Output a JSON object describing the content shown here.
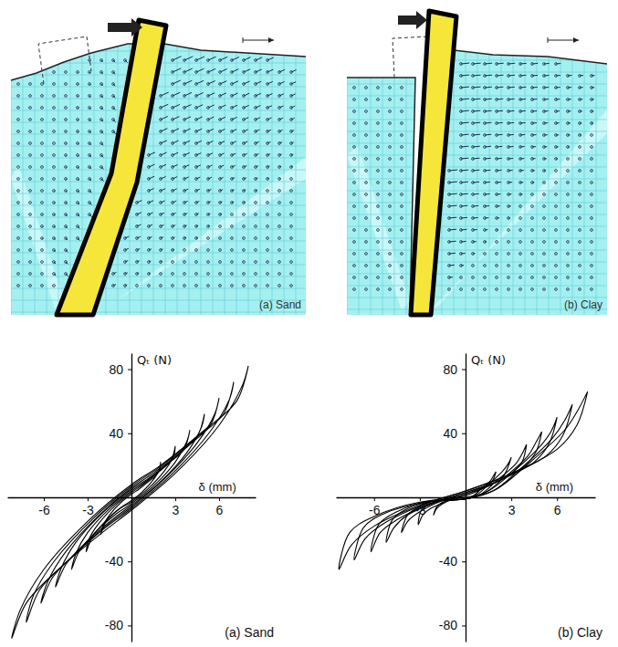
{
  "diagrams": [
    {
      "label": "(a) Sand"
    },
    {
      "label": "(b) Clay"
    }
  ],
  "chart_data": [
    {
      "type": "line",
      "title": "(a) Sand",
      "x_label": "δ (mm)",
      "y_label": "Qₜ (N)",
      "xlim": [
        -8.5,
        8.5
      ],
      "ylim": [
        -90,
        90
      ],
      "xticks": [
        -6,
        -3,
        3,
        6
      ],
      "yticks": [
        80,
        40,
        -40,
        -80
      ],
      "series": [
        {
          "color": "#000000",
          "x": [
            8,
            7.2,
            5,
            2,
            0,
            -3,
            -6,
            -7.6,
            -8.2,
            -7.2,
            -5,
            -2,
            0,
            3,
            6,
            7.6,
            8
          ],
          "values": [
            82,
            60,
            42,
            20,
            8,
            -15,
            -45,
            -70,
            -88,
            -66,
            -45,
            -22,
            -8,
            15,
            45,
            70,
            82
          ]
        },
        {
          "color": "#000000",
          "x": [
            7,
            6.3,
            4.4,
            1.8,
            0,
            -2.6,
            -5.3,
            -6.7,
            -7.2,
            -6.3,
            -4.4,
            -1.8,
            0,
            2.6,
            5.3,
            6.7,
            7
          ],
          "values": [
            72,
            52,
            37,
            18,
            7,
            -13,
            -40,
            -61,
            -78,
            -58,
            -40,
            -19,
            -7,
            13,
            40,
            61,
            72
          ]
        },
        {
          "color": "#000000",
          "x": [
            6,
            5.4,
            3.7,
            1.5,
            0,
            -2.2,
            -4.5,
            -5.7,
            -6.2,
            -5.4,
            -3.7,
            -1.5,
            0,
            2.2,
            4.5,
            5.7,
            6
          ],
          "values": [
            62,
            45,
            31,
            15,
            6,
            -11,
            -34,
            -52,
            -66,
            -50,
            -34,
            -16,
            -6,
            11,
            34,
            52,
            62
          ]
        },
        {
          "color": "#000000",
          "x": [
            5,
            4.5,
            3.1,
            1.2,
            0,
            -1.9,
            -3.8,
            -4.8,
            -5.2,
            -4.5,
            -3.1,
            -1.2,
            0,
            1.9,
            3.8,
            4.8,
            5
          ],
          "values": [
            52,
            38,
            26,
            12,
            5,
            -9,
            -28,
            -44,
            -56,
            -42,
            -28,
            -13,
            -5,
            9,
            28,
            44,
            52
          ]
        },
        {
          "color": "#000000",
          "x": [
            4,
            3.6,
            2.5,
            1,
            0,
            -1.5,
            -3,
            -3.8,
            -4.1,
            -3.6,
            -2.5,
            -1,
            0,
            1.5,
            3,
            3.8,
            4
          ],
          "values": [
            42,
            30,
            21,
            10,
            4,
            -7,
            -22,
            -35,
            -45,
            -34,
            -22,
            -10,
            -4,
            7,
            22,
            35,
            42
          ]
        },
        {
          "color": "#000000",
          "x": [
            3,
            2.7,
            1.9,
            0.8,
            0,
            -1.1,
            -2.3,
            -2.9,
            -3.1,
            -2.7,
            -1.9,
            -0.8,
            0,
            1.1,
            2.3,
            2.9,
            3
          ],
          "values": [
            32,
            23,
            16,
            8,
            3,
            -5,
            -17,
            -26,
            -34,
            -25,
            -16,
            -7,
            -3,
            5,
            17,
            26,
            32
          ]
        },
        {
          "color": "#000000",
          "x": [
            2,
            1.8,
            1.2,
            0.5,
            0,
            -0.7,
            -1.5,
            -1.9,
            -2.1,
            -1.8,
            -1.2,
            -0.5,
            0,
            0.7,
            1.5,
            1.9,
            2
          ],
          "values": [
            22,
            15,
            10,
            5,
            2,
            -3,
            -11,
            -17,
            -23,
            -16,
            -10,
            -5,
            -2,
            3,
            11,
            17,
            22
          ]
        }
      ]
    },
    {
      "type": "line",
      "title": "(b) Clay",
      "x_label": "δ (mm)",
      "y_label": "Qₜ (N)",
      "xlim": [
        -8.5,
        8.5
      ],
      "ylim": [
        -90,
        90
      ],
      "xticks": [
        -6,
        -3,
        3,
        6
      ],
      "yticks": [
        80,
        40,
        -40,
        -80
      ],
      "series": [
        {
          "color": "#000000",
          "x": [
            8,
            7.3,
            6,
            3,
            0,
            -3,
            -6,
            -7.5,
            -8.3,
            -7.6,
            -6,
            -3,
            0,
            2,
            4,
            6.5,
            7.4,
            8
          ],
          "values": [
            66,
            45,
            30,
            15,
            4,
            -5,
            -18,
            -30,
            -45,
            -22,
            -12,
            -3,
            -1,
            5,
            20,
            42,
            55,
            66
          ]
        },
        {
          "color": "#000000",
          "x": [
            7,
            6.4,
            5.3,
            2.6,
            0,
            -2.6,
            -5.3,
            -6.6,
            -7.3,
            -6.7,
            -5.3,
            -2.6,
            0,
            1.8,
            3.5,
            5.7,
            6.5,
            7
          ],
          "values": [
            58,
            39,
            26,
            13,
            4,
            -4,
            -16,
            -26,
            -39,
            -19,
            -10,
            -3,
            -1,
            4,
            17,
            37,
            48,
            58
          ]
        },
        {
          "color": "#000000",
          "x": [
            6,
            5.5,
            4.5,
            2.3,
            0,
            -2.3,
            -4.5,
            -5.6,
            -6.2,
            -5.7,
            -4.5,
            -2.3,
            0,
            1.5,
            3,
            4.9,
            5.6,
            6
          ],
          "values": [
            50,
            34,
            22,
            11,
            3,
            -4,
            -14,
            -22,
            -34,
            -17,
            -9,
            -2,
            -1,
            4,
            15,
            32,
            41,
            50
          ]
        },
        {
          "color": "#000000",
          "x": [
            5,
            4.6,
            3.8,
            1.9,
            0,
            -1.9,
            -3.8,
            -4.7,
            -5.2,
            -4.8,
            -3.8,
            -1.9,
            0,
            1.3,
            2.5,
            4.1,
            4.6,
            5
          ],
          "values": [
            41,
            28,
            19,
            9,
            3,
            -3,
            -11,
            -19,
            -28,
            -14,
            -7,
            -2,
            -1,
            3,
            12,
            26,
            34,
            41
          ]
        },
        {
          "color": "#000000",
          "x": [
            4,
            3.7,
            3,
            1.5,
            0,
            -1.5,
            -3,
            -3.8,
            -4.2,
            -3.8,
            -3,
            -1.5,
            0,
            1,
            2,
            3.3,
            3.7,
            4
          ],
          "values": [
            33,
            22,
            15,
            7,
            2,
            -2,
            -9,
            -15,
            -22,
            -11,
            -6,
            -2,
            -1,
            2,
            10,
            21,
            27,
            33
          ]
        },
        {
          "color": "#000000",
          "x": [
            3,
            2.7,
            2.3,
            1.1,
            0,
            -1.1,
            -2.3,
            -2.8,
            -3.1,
            -2.9,
            -2.3,
            -1.1,
            0,
            0.8,
            1.5,
            2.4,
            2.8,
            3
          ],
          "values": [
            25,
            17,
            11,
            6,
            2,
            -2,
            -7,
            -11,
            -17,
            -8,
            -4,
            -1,
            -1,
            2,
            8,
            16,
            21,
            25
          ]
        },
        {
          "color": "#000000",
          "x": [
            2,
            1.8,
            1.5,
            0.8,
            0,
            -0.8,
            -1.5,
            -1.9,
            -2.1,
            -1.9,
            -1.5,
            -0.8,
            0,
            0.5,
            1,
            1.6,
            1.8,
            2
          ],
          "values": [
            16,
            11,
            8,
            4,
            1,
            -1,
            -4,
            -7,
            -11,
            -6,
            -3,
            -1,
            0,
            1,
            5,
            10,
            13,
            16
          ]
        }
      ]
    }
  ]
}
